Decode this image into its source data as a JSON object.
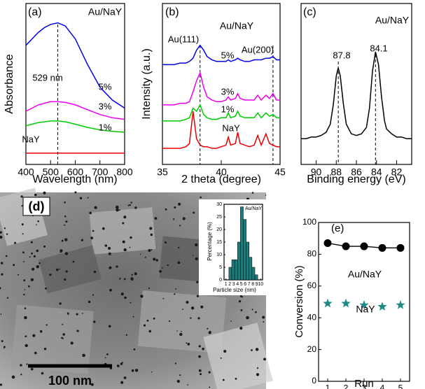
{
  "chart_data": [
    {
      "type": "line",
      "panel_label": "(a)",
      "annotations": [
        "Au/NaY"
      ],
      "xlabel": "Wavelength (nm)",
      "ylabel": "Absorbance",
      "xlim": [
        400,
        800
      ],
      "xticks": [
        400,
        500,
        600,
        700,
        800
      ],
      "ylim": [
        0,
        1
      ],
      "vlines": [
        {
          "value": 529,
          "label": "529 nm"
        }
      ],
      "x": [
        400,
        425,
        450,
        475,
        500,
        529,
        560,
        600,
        650,
        700,
        750,
        800
      ],
      "series": [
        {
          "name": "5%",
          "color": "#0000ee",
          "values": [
            0.74,
            0.78,
            0.82,
            0.85,
            0.87,
            0.88,
            0.86,
            0.78,
            0.62,
            0.48,
            0.4,
            0.35
          ]
        },
        {
          "name": "3%",
          "color": "#ee00ee",
          "values": [
            0.33,
            0.35,
            0.37,
            0.38,
            0.39,
            0.39,
            0.385,
            0.37,
            0.34,
            0.31,
            0.29,
            0.28
          ]
        },
        {
          "name": "1%",
          "color": "#00cc00",
          "values": [
            0.24,
            0.25,
            0.26,
            0.265,
            0.27,
            0.27,
            0.265,
            0.25,
            0.23,
            0.215,
            0.205,
            0.2
          ]
        },
        {
          "name": "NaY",
          "color": "#ee0000",
          "values": [
            0.07,
            0.07,
            0.07,
            0.07,
            0.07,
            0.07,
            0.07,
            0.07,
            0.07,
            0.07,
            0.07,
            0.07
          ]
        }
      ]
    },
    {
      "type": "line",
      "panel_label": "(b)",
      "annotations": [
        "Au/NaY"
      ],
      "xlabel": "2 theta (degree)",
      "ylabel": "Intensity (a.u.)",
      "xlim": [
        35,
        45
      ],
      "xticks": [
        35,
        40,
        45
      ],
      "ylim": [
        0,
        1
      ],
      "vlines": [
        {
          "value": 38.2,
          "label": "Au(111)"
        },
        {
          "value": 44.4,
          "label": "Au(200)"
        }
      ],
      "x": [
        35,
        35.5,
        36,
        36.5,
        37,
        37.3,
        37.6,
        37.9,
        38.2,
        38.5,
        38.8,
        39.2,
        39.6,
        40,
        40.4,
        40.6,
        40.8,
        41.2,
        41.4,
        41.6,
        42,
        42.4,
        42.8,
        43.1,
        43.4,
        43.8,
        44.1,
        44.4,
        44.7,
        45
      ],
      "series": [
        {
          "name": "5%",
          "color": "#0000ee",
          "values": [
            0.62,
            0.62,
            0.62,
            0.63,
            0.63,
            0.64,
            0.66,
            0.71,
            0.74,
            0.71,
            0.67,
            0.65,
            0.64,
            0.64,
            0.64,
            0.65,
            0.64,
            0.65,
            0.66,
            0.65,
            0.64,
            0.64,
            0.65,
            0.65,
            0.65,
            0.66,
            0.66,
            0.67,
            0.65,
            0.65
          ]
        },
        {
          "name": "3%",
          "color": "#ee00ee",
          "values": [
            0.37,
            0.37,
            0.37,
            0.38,
            0.38,
            0.39,
            0.45,
            0.52,
            0.57,
            0.48,
            0.42,
            0.4,
            0.39,
            0.39,
            0.4,
            0.42,
            0.4,
            0.41,
            0.44,
            0.41,
            0.4,
            0.4,
            0.4,
            0.43,
            0.4,
            0.43,
            0.41,
            0.44,
            0.4,
            0.4
          ]
        },
        {
          "name": "1%",
          "color": "#00cc00",
          "values": [
            0.27,
            0.27,
            0.27,
            0.27,
            0.28,
            0.29,
            0.35,
            0.33,
            0.37,
            0.31,
            0.29,
            0.28,
            0.28,
            0.29,
            0.29,
            0.32,
            0.29,
            0.3,
            0.33,
            0.3,
            0.29,
            0.29,
            0.29,
            0.32,
            0.29,
            0.32,
            0.3,
            0.31,
            0.29,
            0.29
          ]
        },
        {
          "name": "NaY",
          "color": "#ee0000",
          "label_color": "#ee0000",
          "values": [
            0.1,
            0.1,
            0.1,
            0.1,
            0.11,
            0.13,
            0.33,
            0.16,
            0.12,
            0.11,
            0.11,
            0.1,
            0.1,
            0.11,
            0.12,
            0.17,
            0.12,
            0.13,
            0.2,
            0.13,
            0.12,
            0.11,
            0.12,
            0.18,
            0.12,
            0.19,
            0.13,
            0.12,
            0.11,
            0.11
          ]
        }
      ]
    },
    {
      "type": "line",
      "panel_label": "(c)",
      "annotations": [
        "Au/NaY"
      ],
      "xlabel": "Binding energy (eV)",
      "xlim": [
        91.5,
        80.5
      ],
      "xticks": [
        90,
        88,
        86,
        84,
        82
      ],
      "ylim": [
        0,
        1
      ],
      "vlines": [
        87.8,
        84.1
      ],
      "x": [
        91.5,
        91,
        90.5,
        90,
        89.5,
        89,
        88.6,
        88.3,
        88,
        87.8,
        87.6,
        87.3,
        87,
        86.5,
        86,
        85.5,
        85,
        84.7,
        84.4,
        84.1,
        83.8,
        83.5,
        83.2,
        83,
        82.5,
        82,
        81.5,
        81,
        80.5
      ],
      "series": [
        {
          "color": "#000000",
          "values": [
            0.16,
            0.16,
            0.17,
            0.17,
            0.18,
            0.2,
            0.25,
            0.37,
            0.55,
            0.6,
            0.55,
            0.38,
            0.25,
            0.19,
            0.18,
            0.19,
            0.23,
            0.35,
            0.58,
            0.7,
            0.62,
            0.42,
            0.27,
            0.22,
            0.19,
            0.17,
            0.17,
            0.16,
            0.16
          ]
        }
      ]
    },
    {
      "type": "image",
      "panel_label": "(d)",
      "scale_bar": "100 nm"
    },
    {
      "type": "histogram",
      "annotations": [
        "Au/NaY"
      ],
      "xlabel": "Particle size (nm)",
      "ylabel": "Percentage (%)",
      "xlim": [
        0.5,
        10.5
      ],
      "xticks": [
        1,
        2,
        3,
        4,
        5,
        6,
        7,
        8,
        9,
        10
      ],
      "ylim": [
        0,
        30
      ],
      "yticks": [
        0,
        5,
        10,
        15,
        20,
        25,
        30
      ],
      "bins": [
        1.75,
        2.5,
        3.25,
        4,
        4.75,
        5.5,
        6.25,
        7,
        7.75,
        8.5,
        9.25
      ],
      "values": [
        5,
        8,
        8,
        15,
        29,
        24,
        15,
        9,
        5,
        2
      ],
      "color": "#1f7a78"
    },
    {
      "type": "scatter",
      "panel_label": "(e)",
      "xlabel": "Run",
      "ylabel": "Conversion (%)",
      "xlim": [
        0.5,
        5.5
      ],
      "xticks": [
        1,
        2,
        3,
        4,
        5
      ],
      "ylim": [
        0,
        100
      ],
      "yticks": [
        0,
        20,
        40,
        60,
        80,
        100
      ],
      "x": [
        1,
        2,
        3,
        4,
        5
      ],
      "series": [
        {
          "name": "Au/NaY",
          "color": "#000000",
          "marker": "circle",
          "line": true,
          "values": [
            87,
            85,
            85,
            84,
            84
          ]
        },
        {
          "name": "NaY",
          "color": "#1f8a85",
          "label_color": "#1f8a85",
          "marker": "star",
          "values": [
            49,
            49,
            48,
            47,
            48
          ]
        }
      ]
    }
  ]
}
